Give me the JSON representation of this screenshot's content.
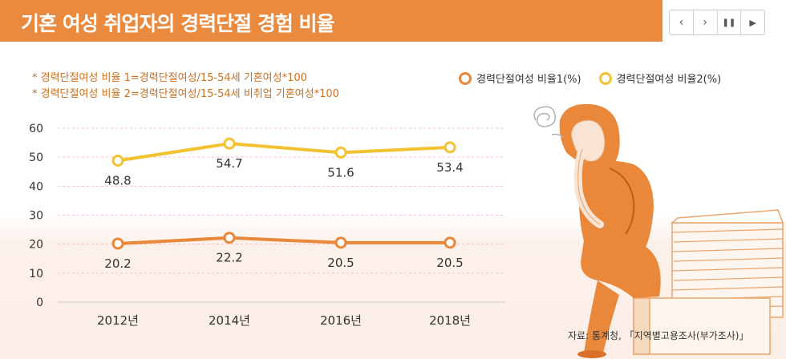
{
  "header": {
    "title": "기혼 여성 취업자의 경력단절 경험 비율"
  },
  "controls": {
    "prev": "‹",
    "next": "›",
    "pause": "❚❚",
    "play": "▶"
  },
  "notes": [
    "* 경력단절여성 비율 1=경력단절여성/15-54세 기혼여성*100",
    "* 경력단절여성 비율 2=경력단절여성/15-54세 비취업 기혼여성*100"
  ],
  "source": "자료: 통계청, 「지역별고용조사(부가조사)」",
  "colors": {
    "series1": "#e9883b",
    "series2": "#f2c230",
    "title_bg": "#ea8a3f",
    "grid": "#f0c3c3"
  },
  "chart_data": {
    "type": "line",
    "categories": [
      "2012년",
      "2014년",
      "2016년",
      "2018년"
    ],
    "series": [
      {
        "name": "경력단절여성 비율1(%)",
        "values": [
          20.2,
          22.2,
          20.5,
          20.5
        ]
      },
      {
        "name": "경력단절여성 비율2(%)",
        "values": [
          48.8,
          54.7,
          51.6,
          53.4
        ]
      }
    ],
    "yticks": [
      0,
      10,
      20,
      30,
      40,
      50,
      60
    ],
    "ylim": [
      0,
      60
    ],
    "grid": true,
    "legend": "top-right"
  }
}
